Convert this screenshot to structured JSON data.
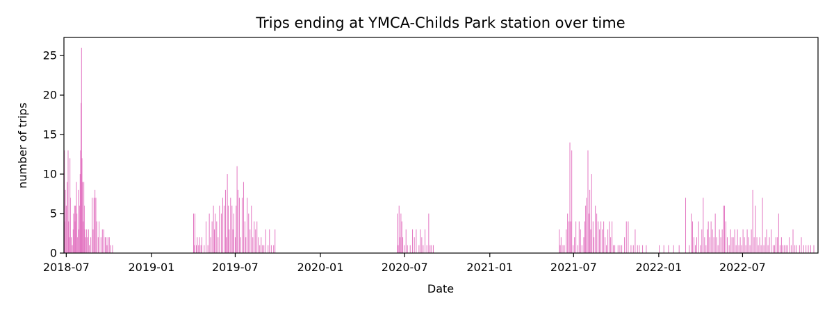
{
  "chart_data": {
    "type": "bar",
    "title": "Trips ending at YMCA-Childs Park station over time",
    "xlabel": "Date",
    "ylabel": "number of trips",
    "color": "#e377c2",
    "xlim": [
      "2018-06-26",
      "2022-12-11"
    ],
    "ylim": [
      0,
      27.3
    ],
    "yticks": [
      0,
      5,
      10,
      15,
      20,
      25
    ],
    "xticks": [
      "2018-07",
      "2019-01",
      "2019-07",
      "2020-01",
      "2020-07",
      "2021-01",
      "2021-07",
      "2022-01",
      "2022-07"
    ],
    "grid": false,
    "legend": "none",
    "points": [
      [
        "2018-06-27",
        13
      ],
      [
        "2018-06-28",
        4
      ],
      [
        "2018-06-29",
        8
      ],
      [
        "2018-07-01",
        6
      ],
      [
        "2018-07-03",
        9
      ],
      [
        "2018-07-05",
        13
      ],
      [
        "2018-07-06",
        4
      ],
      [
        "2018-07-07",
        2
      ],
      [
        "2018-07-09",
        12
      ],
      [
        "2018-07-10",
        7
      ],
      [
        "2018-07-12",
        2
      ],
      [
        "2018-07-14",
        1
      ],
      [
        "2018-07-16",
        3
      ],
      [
        "2018-07-17",
        5
      ],
      [
        "2018-07-19",
        6
      ],
      [
        "2018-07-20",
        4
      ],
      [
        "2018-07-21",
        6
      ],
      [
        "2018-07-23",
        9
      ],
      [
        "2018-07-24",
        5
      ],
      [
        "2018-07-25",
        2
      ],
      [
        "2018-07-27",
        8
      ],
      [
        "2018-07-28",
        3
      ],
      [
        "2018-07-30",
        6
      ],
      [
        "2018-07-31",
        10
      ],
      [
        "2018-08-01",
        13
      ],
      [
        "2018-08-02",
        19
      ],
      [
        "2018-08-03",
        26
      ],
      [
        "2018-08-04",
        12
      ],
      [
        "2018-08-05",
        9
      ],
      [
        "2018-08-07",
        4
      ],
      [
        "2018-08-08",
        9
      ],
      [
        "2018-08-09",
        6
      ],
      [
        "2018-08-10",
        3
      ],
      [
        "2018-08-12",
        2
      ],
      [
        "2018-08-14",
        3
      ],
      [
        "2018-08-16",
        2
      ],
      [
        "2018-08-18",
        3
      ],
      [
        "2018-08-20",
        1
      ],
      [
        "2018-08-23",
        2
      ],
      [
        "2018-08-26",
        7
      ],
      [
        "2018-08-28",
        3
      ],
      [
        "2018-08-30",
        7
      ],
      [
        "2018-09-01",
        8
      ],
      [
        "2018-09-03",
        7
      ],
      [
        "2018-09-05",
        4
      ],
      [
        "2018-09-08",
        2
      ],
      [
        "2018-09-10",
        4
      ],
      [
        "2018-09-14",
        2
      ],
      [
        "2018-09-17",
        3
      ],
      [
        "2018-09-20",
        3
      ],
      [
        "2018-09-23",
        2
      ],
      [
        "2018-09-25",
        2
      ],
      [
        "2018-09-27",
        1
      ],
      [
        "2018-09-29",
        2
      ],
      [
        "2018-10-02",
        2
      ],
      [
        "2018-10-05",
        1
      ],
      [
        "2018-10-09",
        1
      ],
      [
        "2019-04-02",
        5
      ],
      [
        "2019-04-03",
        1
      ],
      [
        "2019-04-05",
        5
      ],
      [
        "2019-04-08",
        1
      ],
      [
        "2019-04-10",
        2
      ],
      [
        "2019-04-13",
        1
      ],
      [
        "2019-04-15",
        2
      ],
      [
        "2019-04-18",
        1
      ],
      [
        "2019-04-20",
        2
      ],
      [
        "2019-04-25",
        1
      ],
      [
        "2019-04-29",
        4
      ],
      [
        "2019-05-03",
        1
      ],
      [
        "2019-05-06",
        5
      ],
      [
        "2019-05-09",
        2
      ],
      [
        "2019-05-12",
        4
      ],
      [
        "2019-05-15",
        6
      ],
      [
        "2019-05-17",
        3
      ],
      [
        "2019-05-19",
        5
      ],
      [
        "2019-05-22",
        4
      ],
      [
        "2019-05-25",
        2
      ],
      [
        "2019-05-28",
        6
      ],
      [
        "2019-06-01",
        5
      ],
      [
        "2019-06-04",
        7
      ],
      [
        "2019-06-07",
        6
      ],
      [
        "2019-06-10",
        8
      ],
      [
        "2019-06-12",
        2
      ],
      [
        "2019-06-14",
        10
      ],
      [
        "2019-06-16",
        6
      ],
      [
        "2019-06-18",
        3
      ],
      [
        "2019-06-21",
        7
      ],
      [
        "2019-06-24",
        6
      ],
      [
        "2019-06-26",
        3
      ],
      [
        "2019-06-28",
        5
      ],
      [
        "2019-07-01",
        2
      ],
      [
        "2019-07-03",
        6
      ],
      [
        "2019-07-05",
        11
      ],
      [
        "2019-07-07",
        8
      ],
      [
        "2019-07-10",
        7
      ],
      [
        "2019-07-13",
        2
      ],
      [
        "2019-07-16",
        7
      ],
      [
        "2019-07-19",
        9
      ],
      [
        "2019-07-22",
        4
      ],
      [
        "2019-07-24",
        2
      ],
      [
        "2019-07-27",
        7
      ],
      [
        "2019-07-30",
        5
      ],
      [
        "2019-08-02",
        3
      ],
      [
        "2019-08-05",
        6
      ],
      [
        "2019-08-08",
        2
      ],
      [
        "2019-08-11",
        4
      ],
      [
        "2019-08-14",
        3
      ],
      [
        "2019-08-17",
        4
      ],
      [
        "2019-08-20",
        2
      ],
      [
        "2019-08-23",
        1
      ],
      [
        "2019-08-26",
        2
      ],
      [
        "2019-08-29",
        1
      ],
      [
        "2019-09-01",
        1
      ],
      [
        "2019-09-05",
        3
      ],
      [
        "2019-09-10",
        1
      ],
      [
        "2019-09-13",
        3
      ],
      [
        "2019-09-17",
        1
      ],
      [
        "2019-09-22",
        1
      ],
      [
        "2019-09-25",
        3
      ],
      [
        "2020-06-15",
        5
      ],
      [
        "2020-06-17",
        1
      ],
      [
        "2020-06-19",
        6
      ],
      [
        "2020-06-21",
        2
      ],
      [
        "2020-06-23",
        5
      ],
      [
        "2020-06-25",
        4
      ],
      [
        "2020-06-27",
        2
      ],
      [
        "2020-06-30",
        1
      ],
      [
        "2020-07-04",
        3
      ],
      [
        "2020-07-07",
        1
      ],
      [
        "2020-07-13",
        1
      ],
      [
        "2020-07-18",
        3
      ],
      [
        "2020-07-22",
        2
      ],
      [
        "2020-07-26",
        3
      ],
      [
        "2020-08-01",
        1
      ],
      [
        "2020-08-04",
        3
      ],
      [
        "2020-08-07",
        2
      ],
      [
        "2020-08-10",
        1
      ],
      [
        "2020-08-14",
        3
      ],
      [
        "2020-08-18",
        1
      ],
      [
        "2020-08-22",
        5
      ],
      [
        "2020-08-25",
        1
      ],
      [
        "2020-08-28",
        1
      ],
      [
        "2020-09-01",
        1
      ],
      [
        "2021-05-31",
        3
      ],
      [
        "2021-06-02",
        1
      ],
      [
        "2021-06-04",
        2
      ],
      [
        "2021-06-08",
        1
      ],
      [
        "2021-06-11",
        1
      ],
      [
        "2021-06-15",
        3
      ],
      [
        "2021-06-18",
        5
      ],
      [
        "2021-06-21",
        4
      ],
      [
        "2021-06-23",
        14
      ],
      [
        "2021-06-25",
        4
      ],
      [
        "2021-06-27",
        13
      ],
      [
        "2021-06-30",
        1
      ],
      [
        "2021-07-03",
        2
      ],
      [
        "2021-07-06",
        4
      ],
      [
        "2021-07-10",
        1
      ],
      [
        "2021-07-13",
        4
      ],
      [
        "2021-07-16",
        3
      ],
      [
        "2021-07-19",
        1
      ],
      [
        "2021-07-23",
        2
      ],
      [
        "2021-07-25",
        4
      ],
      [
        "2021-07-27",
        6
      ],
      [
        "2021-07-29",
        7
      ],
      [
        "2021-08-01",
        13
      ],
      [
        "2021-08-03",
        5
      ],
      [
        "2021-08-05",
        8
      ],
      [
        "2021-08-07",
        3
      ],
      [
        "2021-08-09",
        10
      ],
      [
        "2021-08-12",
        4
      ],
      [
        "2021-08-14",
        2
      ],
      [
        "2021-08-17",
        6
      ],
      [
        "2021-08-20",
        5
      ],
      [
        "2021-08-23",
        4
      ],
      [
        "2021-08-26",
        3
      ],
      [
        "2021-08-29",
        4
      ],
      [
        "2021-09-01",
        3
      ],
      [
        "2021-09-04",
        4
      ],
      [
        "2021-09-07",
        2
      ],
      [
        "2021-09-10",
        1
      ],
      [
        "2021-09-13",
        3
      ],
      [
        "2021-09-16",
        4
      ],
      [
        "2021-09-19",
        2
      ],
      [
        "2021-09-22",
        4
      ],
      [
        "2021-09-25",
        1
      ],
      [
        "2021-09-28",
        1
      ],
      [
        "2021-10-05",
        1
      ],
      [
        "2021-10-09",
        1
      ],
      [
        "2021-10-13",
        1
      ],
      [
        "2021-10-19",
        2
      ],
      [
        "2021-10-23",
        4
      ],
      [
        "2021-10-27",
        4
      ],
      [
        "2021-11-02",
        1
      ],
      [
        "2021-11-07",
        1
      ],
      [
        "2021-11-11",
        3
      ],
      [
        "2021-11-16",
        1
      ],
      [
        "2021-11-20",
        1
      ],
      [
        "2021-11-27",
        1
      ],
      [
        "2021-12-05",
        1
      ],
      [
        "2022-01-02",
        1
      ],
      [
        "2022-01-12",
        1
      ],
      [
        "2022-01-22",
        1
      ],
      [
        "2022-02-02",
        1
      ],
      [
        "2022-02-14",
        1
      ],
      [
        "2022-02-28",
        7
      ],
      [
        "2022-03-08",
        1
      ],
      [
        "2022-03-12",
        5
      ],
      [
        "2022-03-15",
        4
      ],
      [
        "2022-03-18",
        2
      ],
      [
        "2022-03-21",
        1
      ],
      [
        "2022-03-24",
        2
      ],
      [
        "2022-03-28",
        4
      ],
      [
        "2022-04-01",
        1
      ],
      [
        "2022-04-04",
        3
      ],
      [
        "2022-04-07",
        7
      ],
      [
        "2022-04-10",
        2
      ],
      [
        "2022-04-13",
        1
      ],
      [
        "2022-04-16",
        3
      ],
      [
        "2022-04-18",
        4
      ],
      [
        "2022-04-21",
        2
      ],
      [
        "2022-04-24",
        4
      ],
      [
        "2022-04-27",
        3
      ],
      [
        "2022-04-30",
        2
      ],
      [
        "2022-05-03",
        5
      ],
      [
        "2022-05-06",
        2
      ],
      [
        "2022-05-09",
        1
      ],
      [
        "2022-05-12",
        3
      ],
      [
        "2022-05-15",
        2
      ],
      [
        "2022-05-18",
        3
      ],
      [
        "2022-05-21",
        6
      ],
      [
        "2022-05-23",
        6
      ],
      [
        "2022-05-26",
        4
      ],
      [
        "2022-05-29",
        2
      ],
      [
        "2022-06-02",
        1
      ],
      [
        "2022-06-05",
        3
      ],
      [
        "2022-06-08",
        2
      ],
      [
        "2022-06-11",
        2
      ],
      [
        "2022-06-14",
        3
      ],
      [
        "2022-06-17",
        1
      ],
      [
        "2022-06-20",
        3
      ],
      [
        "2022-06-23",
        1
      ],
      [
        "2022-06-26",
        2
      ],
      [
        "2022-06-29",
        1
      ],
      [
        "2022-07-02",
        3
      ],
      [
        "2022-07-05",
        2
      ],
      [
        "2022-07-08",
        1
      ],
      [
        "2022-07-11",
        3
      ],
      [
        "2022-07-14",
        2
      ],
      [
        "2022-07-17",
        1
      ],
      [
        "2022-07-20",
        3
      ],
      [
        "2022-07-23",
        8
      ],
      [
        "2022-07-26",
        2
      ],
      [
        "2022-07-29",
        6
      ],
      [
        "2022-08-01",
        2
      ],
      [
        "2022-08-04",
        1
      ],
      [
        "2022-08-07",
        2
      ],
      [
        "2022-08-10",
        1
      ],
      [
        "2022-08-13",
        7
      ],
      [
        "2022-08-16",
        1
      ],
      [
        "2022-08-19",
        2
      ],
      [
        "2022-08-22",
        3
      ],
      [
        "2022-08-25",
        1
      ],
      [
        "2022-08-28",
        2
      ],
      [
        "2022-09-01",
        3
      ],
      [
        "2022-09-05",
        1
      ],
      [
        "2022-09-08",
        1
      ],
      [
        "2022-09-11",
        2
      ],
      [
        "2022-09-14",
        2
      ],
      [
        "2022-09-17",
        5
      ],
      [
        "2022-09-20",
        1
      ],
      [
        "2022-09-23",
        2
      ],
      [
        "2022-09-26",
        1
      ],
      [
        "2022-09-29",
        1
      ],
      [
        "2022-10-03",
        1
      ],
      [
        "2022-10-06",
        1
      ],
      [
        "2022-10-10",
        2
      ],
      [
        "2022-10-14",
        1
      ],
      [
        "2022-10-18",
        3
      ],
      [
        "2022-10-22",
        1
      ],
      [
        "2022-10-26",
        1
      ],
      [
        "2022-11-01",
        1
      ],
      [
        "2022-11-05",
        2
      ],
      [
        "2022-11-10",
        1
      ],
      [
        "2022-11-15",
        1
      ],
      [
        "2022-11-20",
        1
      ],
      [
        "2022-11-25",
        1
      ],
      [
        "2022-12-02",
        1
      ]
    ]
  }
}
